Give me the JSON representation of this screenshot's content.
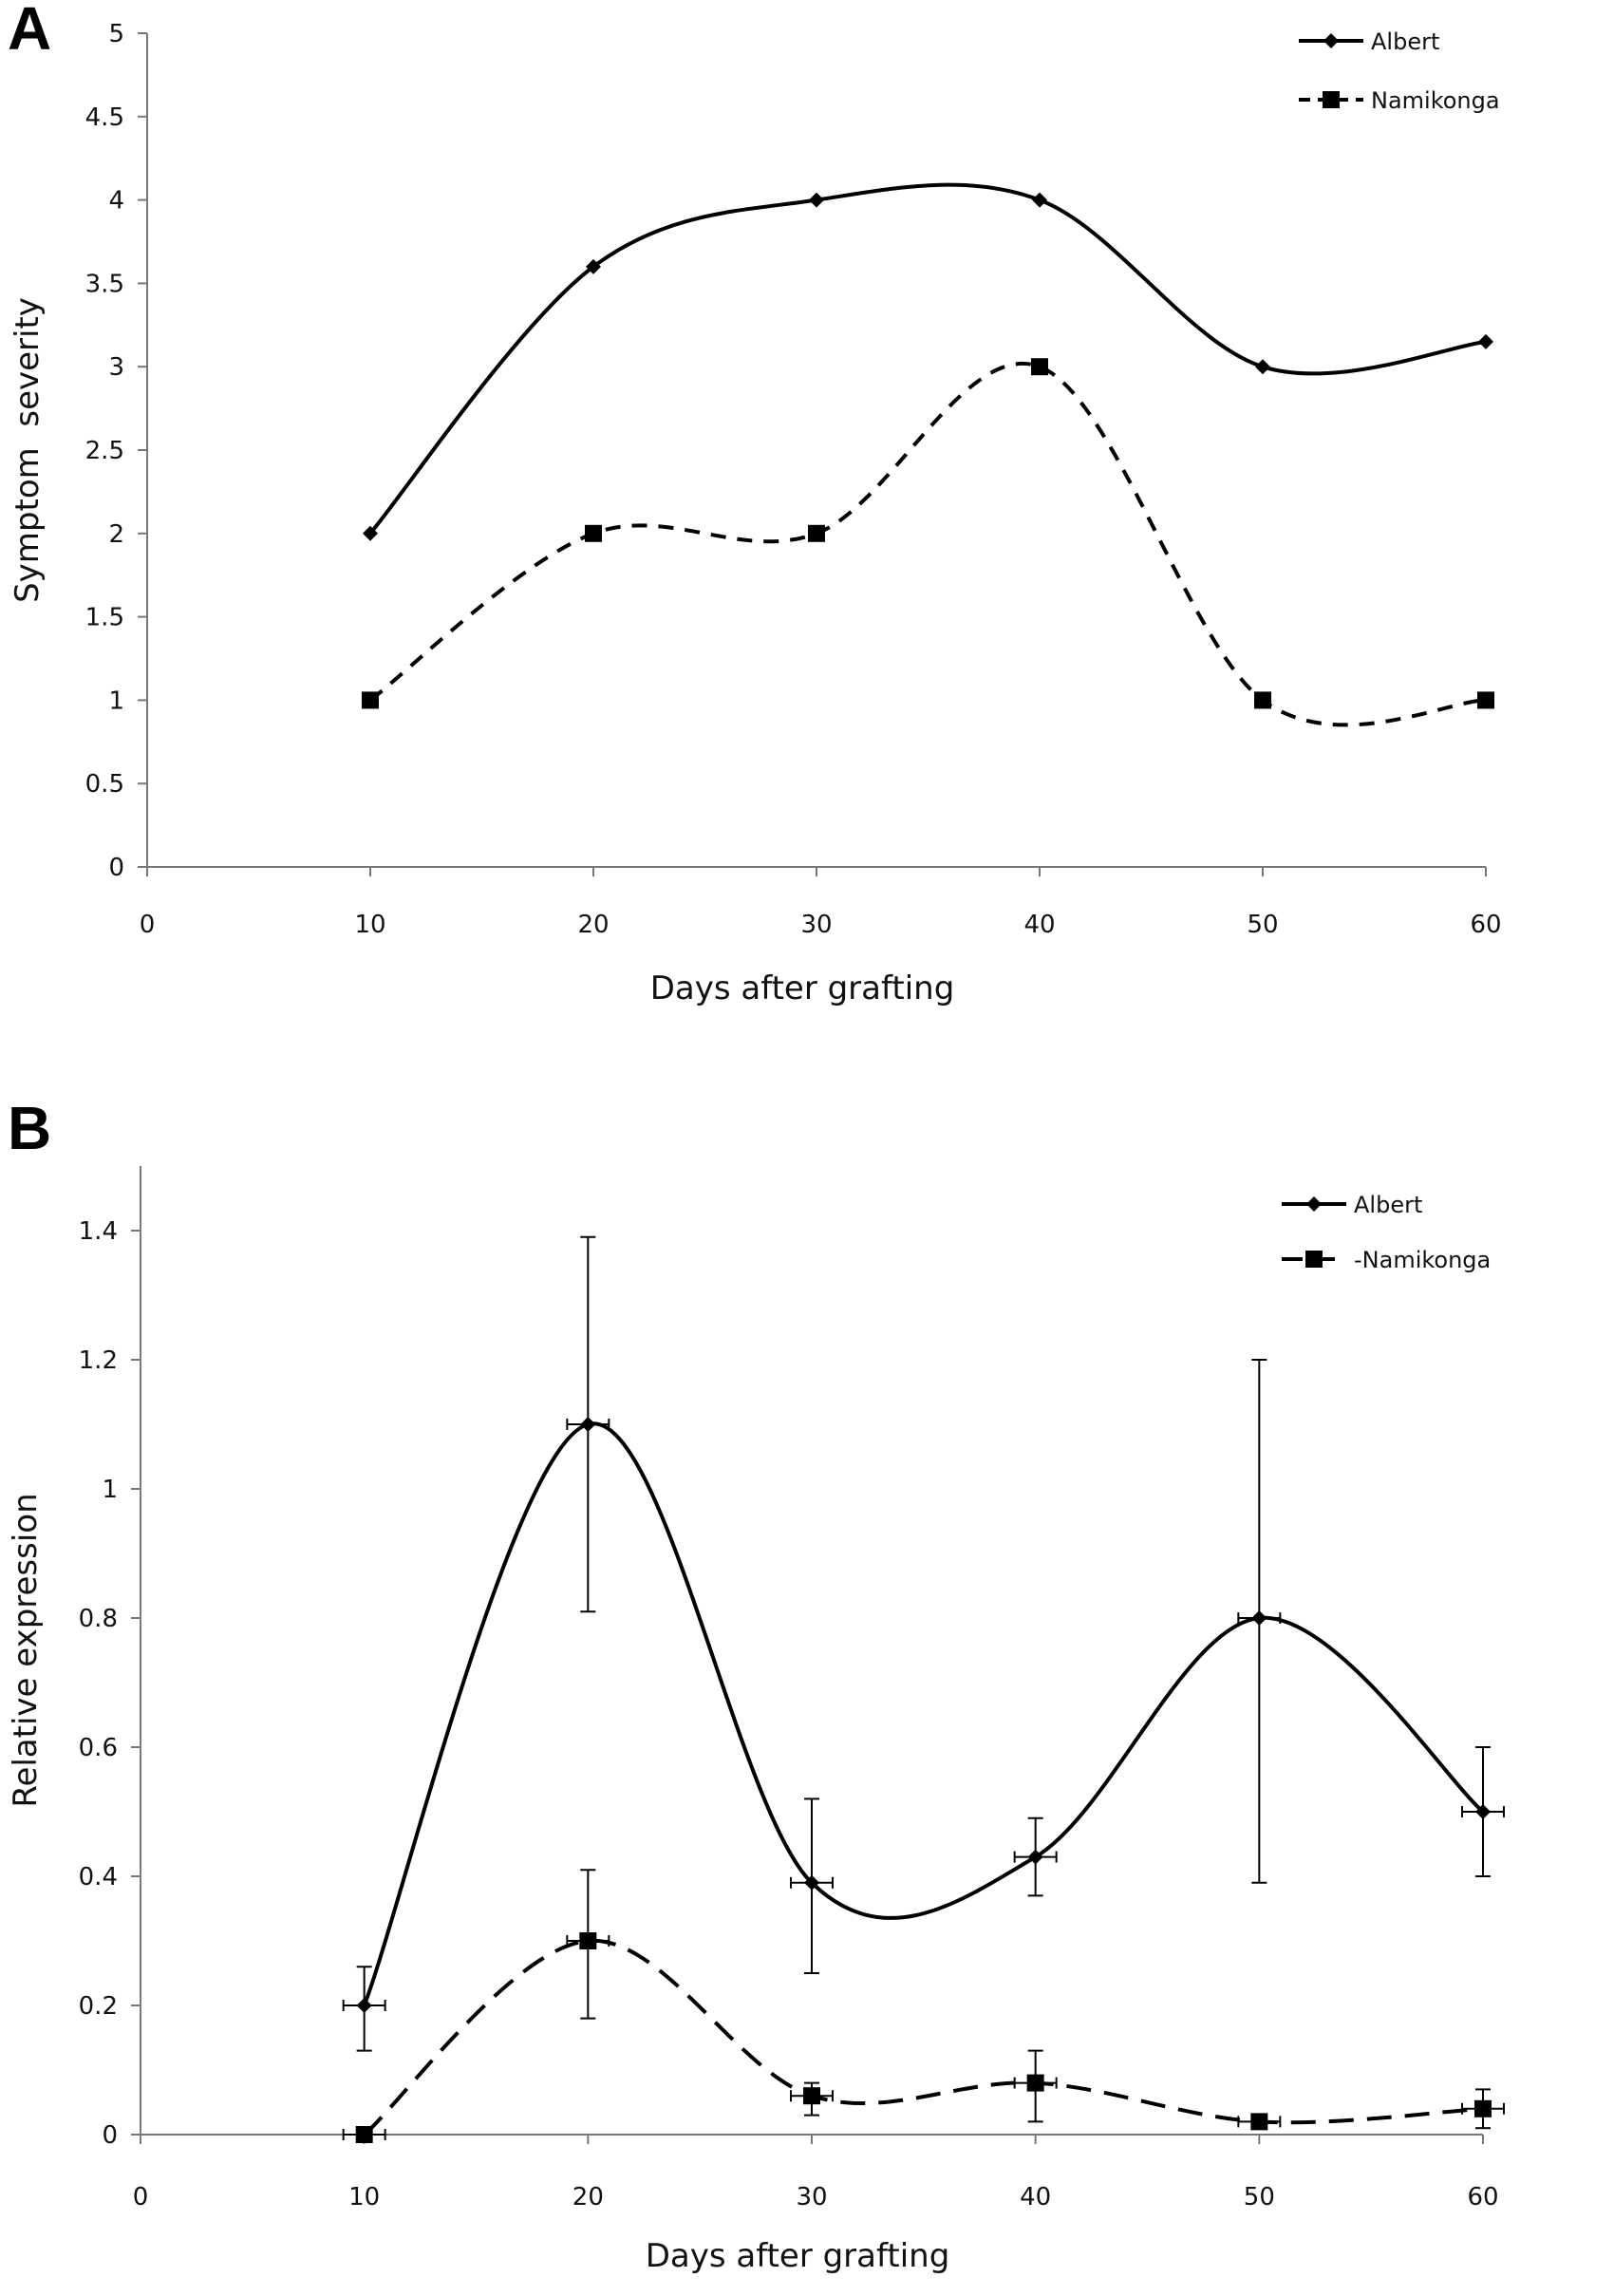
{
  "chart_data": [
    {
      "panel": "A",
      "type": "line",
      "xlabel": "Days after grafting",
      "ylabel": "Symptom  severity",
      "xlim": [
        0,
        60
      ],
      "ylim": [
        0,
        5
      ],
      "xticks": [
        0,
        10,
        20,
        30,
        40,
        50,
        60
      ],
      "yticks": [
        0,
        0.5,
        1,
        1.5,
        2,
        2.5,
        3,
        3.5,
        4,
        4.5,
        5
      ],
      "legend_position": "top-right",
      "series": [
        {
          "name": "Albert",
          "line": "solid",
          "marker": "diamond",
          "x": [
            10,
            20,
            30,
            40,
            50,
            60
          ],
          "y": [
            2,
            3.6,
            4,
            4,
            3,
            3.15
          ]
        },
        {
          "name": "Namikonga",
          "line": "dashed",
          "marker": "square",
          "x": [
            10,
            20,
            30,
            40,
            50,
            60
          ],
          "y": [
            1,
            2,
            2,
            3,
            1,
            1
          ]
        }
      ]
    },
    {
      "panel": "B",
      "type": "line",
      "xlabel": "Days after grafting",
      "ylabel": "Relative expression",
      "xlim": [
        0,
        60
      ],
      "ylim": [
        0,
        1.5
      ],
      "xticks": [
        0,
        10,
        20,
        30,
        40,
        50,
        60
      ],
      "yticks": [
        0,
        0.2,
        0.4,
        0.6,
        0.8,
        1,
        1.2,
        1.4
      ],
      "legend_position": "top-right",
      "series": [
        {
          "name": "Albert",
          "line": "solid",
          "marker": "diamond",
          "x": [
            10,
            20,
            30,
            40,
            50,
            60
          ],
          "y": [
            0.2,
            1.1,
            0.39,
            0.43,
            0.8,
            0.5
          ],
          "err_low": [
            0.13,
            0.81,
            0.25,
            0.37,
            0.39,
            0.4
          ],
          "err_high": [
            0.26,
            1.39,
            0.52,
            0.49,
            1.2,
            0.6
          ]
        },
        {
          "name": "Namikonga",
          "legend_label": "-Namikonga",
          "line": "longdash",
          "marker": "square",
          "x": [
            10,
            20,
            30,
            40,
            50,
            60
          ],
          "y": [
            0,
            0.3,
            0.06,
            0.08,
            0.02,
            0.04
          ],
          "err_low": [
            0,
            0.18,
            0.03,
            0.02,
            0.01,
            0.01
          ],
          "err_high": [
            0.01,
            0.41,
            0.08,
            0.13,
            0.03,
            0.07
          ]
        }
      ]
    }
  ]
}
